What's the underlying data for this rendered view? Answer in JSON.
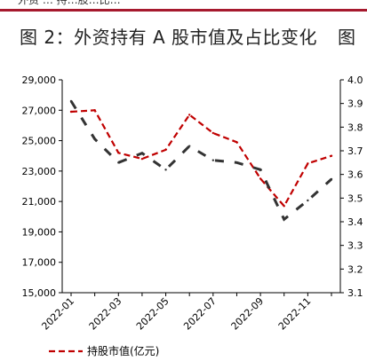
{
  "page": {
    "clipped_header": "外资 … 持…股…比…",
    "title": "图 2：外资持有 A 股市值及占比变化",
    "title_right": "图"
  },
  "chart_data": {
    "type": "line",
    "title": "图 2：外资持有 A 股市值及占比变化",
    "x": [
      "2022-01",
      "2022-02",
      "2022-03",
      "2022-04",
      "2022-05",
      "2022-06",
      "2022-07",
      "2022-08",
      "2022-09",
      "2022-10",
      "2022-11",
      "2022-12"
    ],
    "x_tick_labels": [
      "2022-01",
      "2022-03",
      "2022-05",
      "2022-07",
      "2022-09",
      "2022-11"
    ],
    "left_axis": {
      "ylim": [
        15000,
        29000
      ],
      "ticks": [
        "15,000",
        "17,000",
        "19,000",
        "21,000",
        "23,000",
        "25,000",
        "27,000",
        "29,000"
      ]
    },
    "right_axis": {
      "ylim": [
        3.1,
        4.0
      ],
      "ticks": [
        "3.1",
        "3.2",
        "3.3",
        "3.4",
        "3.5",
        "3.6",
        "3.7",
        "3.8",
        "3.9",
        "4.0"
      ]
    },
    "series": [
      {
        "name": "持股市值(亿元)",
        "axis": "left",
        "color": "#c00000",
        "style": "dashed",
        "values": [
          26900,
          27000,
          24200,
          23800,
          24400,
          26700,
          25500,
          24900,
          22500,
          20700,
          23500,
          24000
        ]
      },
      {
        "name": "",
        "axis": "right",
        "color": "#333333",
        "style": "dashed",
        "values": [
          3.91,
          3.75,
          3.65,
          3.69,
          3.62,
          3.72,
          3.66,
          3.65,
          3.62,
          3.41,
          3.49,
          3.58
        ]
      }
    ],
    "legend": {
      "position": "bottom-left",
      "entries": [
        "持股市值(亿元)"
      ]
    },
    "grid": false
  }
}
